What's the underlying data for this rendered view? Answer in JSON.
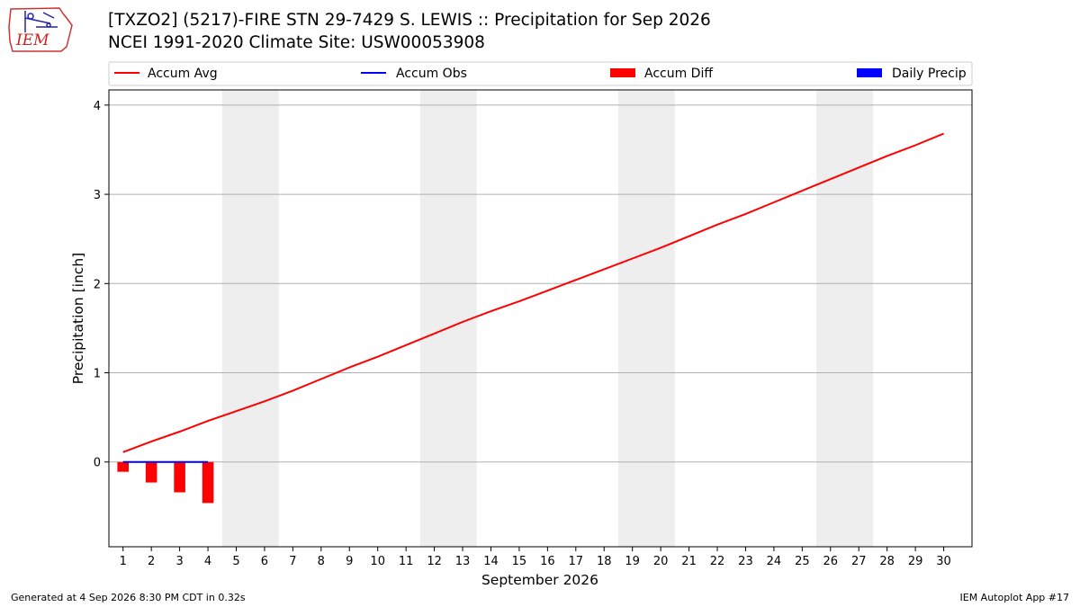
{
  "header": {
    "title_line1": "[TXZO2] (5217)-FIRE STN 29-7429 S. LEWIS :: Precipitation for Sep 2026",
    "title_line2": "NCEI 1991-2020 Climate Site: USW00053908",
    "logo_text": "IEM"
  },
  "footer": {
    "generated": "Generated at 4 Sep 2026 8:30 PM CDT in 0.32s",
    "app": "IEM Autoplot App #17"
  },
  "chart_data": {
    "type": "line",
    "title": "[TXZO2] (5217)-FIRE STN 29-7429 S. LEWIS :: Precipitation for Sep 2026",
    "subtitle": "NCEI 1991-2020 Climate Site: USW00053908",
    "xlabel": "September 2026",
    "ylabel": "Precipitation [inch]",
    "xlim": [
      0.5,
      31
    ],
    "ylim": [
      -0.95,
      4.17
    ],
    "yticks": [
      0,
      1,
      2,
      3,
      4
    ],
    "x_ticks": [
      1,
      2,
      3,
      4,
      5,
      6,
      7,
      8,
      9,
      10,
      11,
      12,
      13,
      14,
      15,
      16,
      17,
      18,
      19,
      20,
      21,
      22,
      23,
      24,
      25,
      26,
      27,
      28,
      29,
      30
    ],
    "grid": "horizontal",
    "legend": {
      "placement": "top",
      "entries": [
        {
          "label": "Accum Avg",
          "kind": "line",
          "color": "#ff0000"
        },
        {
          "label": "Accum Obs",
          "kind": "line",
          "color": "#0000ff"
        },
        {
          "label": "Accum Diff",
          "kind": "bar",
          "color": "#ff0000"
        },
        {
          "label": "Daily Precip",
          "kind": "bar",
          "color": "#0000ff"
        }
      ]
    },
    "weekend_shading": [
      [
        4.5,
        6.5
      ],
      [
        11.5,
        13.5
      ],
      [
        18.5,
        20.5
      ],
      [
        25.5,
        27.5
      ]
    ],
    "series": [
      {
        "name": "Accum Avg",
        "type": "line",
        "color": "#ff0000",
        "x": [
          1,
          2,
          3,
          4,
          5,
          6,
          7,
          8,
          9,
          10,
          11,
          12,
          13,
          14,
          15,
          16,
          17,
          18,
          19,
          20,
          21,
          22,
          23,
          24,
          25,
          26,
          27,
          28,
          29,
          30
        ],
        "values": [
          0.11,
          0.23,
          0.34,
          0.46,
          0.57,
          0.68,
          0.8,
          0.93,
          1.06,
          1.18,
          1.31,
          1.44,
          1.57,
          1.69,
          1.8,
          1.92,
          2.04,
          2.16,
          2.28,
          2.4,
          2.53,
          2.66,
          2.78,
          2.91,
          3.04,
          3.17,
          3.3,
          3.43,
          3.55,
          3.68
        ]
      },
      {
        "name": "Accum Obs",
        "type": "line",
        "color": "#0000ff",
        "x": [
          1,
          2,
          3,
          4
        ],
        "values": [
          0,
          0,
          0,
          0
        ]
      },
      {
        "name": "Accum Diff",
        "type": "bar",
        "color": "#ff0000",
        "x": [
          1,
          2,
          3,
          4
        ],
        "values": [
          -0.11,
          -0.23,
          -0.34,
          -0.46
        ]
      },
      {
        "name": "Daily Precip",
        "type": "bar",
        "color": "#0000ff",
        "x": [
          1,
          2,
          3,
          4
        ],
        "values": [
          0,
          0,
          0,
          0
        ]
      }
    ]
  }
}
